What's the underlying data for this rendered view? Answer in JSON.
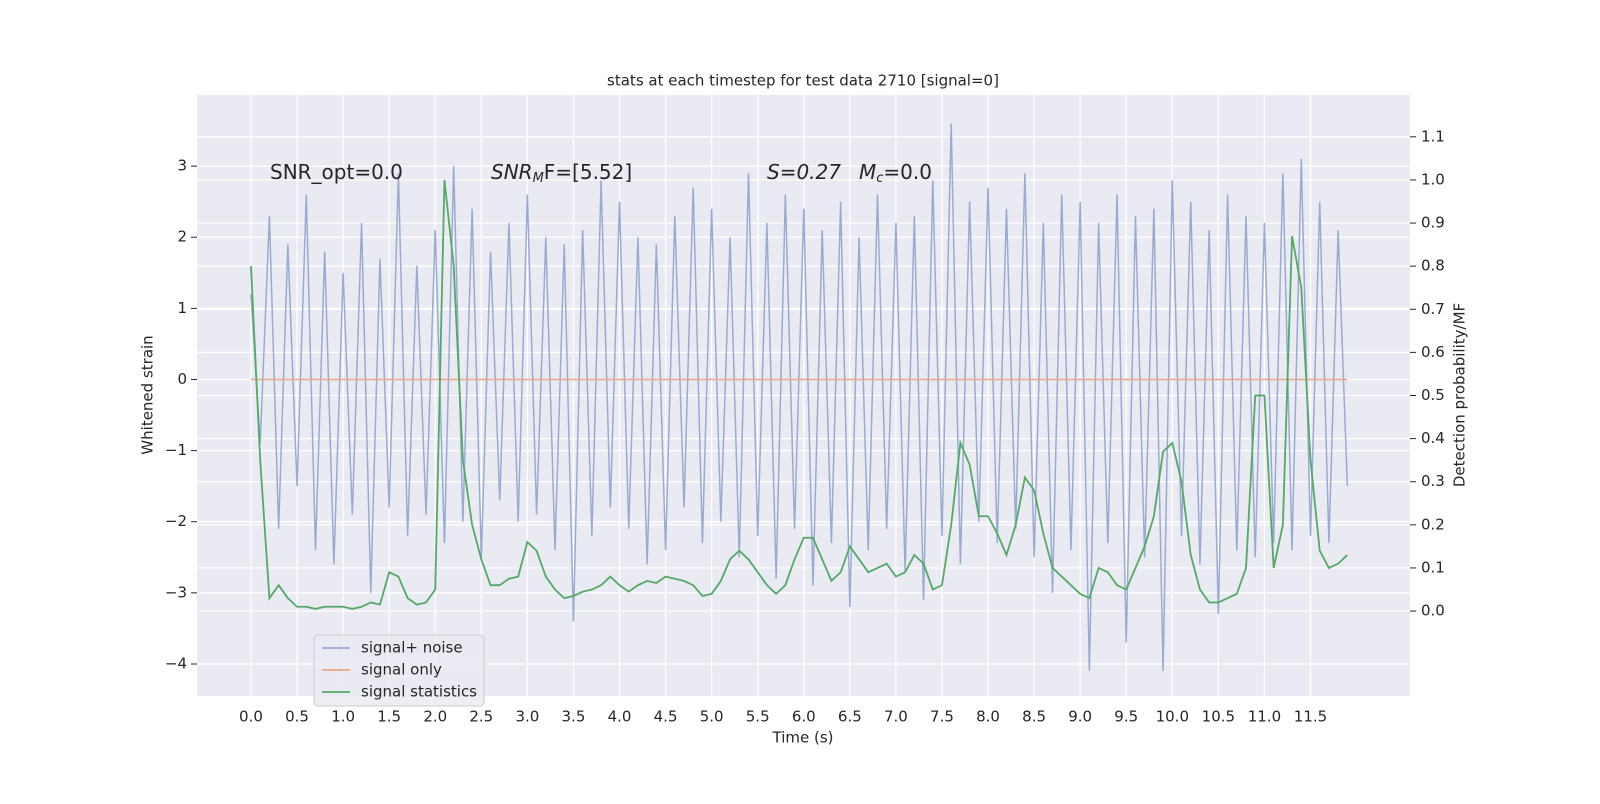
{
  "chart_data": {
    "type": "line",
    "title": "stats at each timestep for test data 2710 [signal=0]",
    "xlabel": "Time (s)",
    "ylabel": "Whitened strain",
    "y2label": "Detection probability/MF",
    "annotations": [
      {
        "parts": [
          "SNR_opt=0.0"
        ]
      },
      {
        "parts": [
          "SNR",
          "M",
          "F=[5.52]"
        ]
      },
      {
        "parts": [
          "S=0.27"
        ]
      },
      {
        "parts": [
          "M",
          "c",
          "=0.0"
        ]
      }
    ],
    "x": [
      0.0,
      0.1,
      0.2,
      0.3,
      0.4,
      0.5,
      0.6,
      0.7,
      0.8,
      0.9,
      1.0,
      1.1,
      1.2,
      1.3,
      1.4,
      1.5,
      1.6,
      1.7,
      1.8,
      1.9,
      2.0,
      2.1,
      2.2,
      2.3,
      2.4,
      2.5,
      2.6,
      2.7,
      2.8,
      2.9,
      3.0,
      3.1,
      3.2,
      3.3,
      3.4,
      3.5,
      3.6,
      3.7,
      3.8,
      3.9,
      4.0,
      4.1,
      4.2,
      4.3,
      4.4,
      4.5,
      4.6,
      4.7,
      4.8,
      4.9,
      5.0,
      5.1,
      5.2,
      5.3,
      5.4,
      5.5,
      5.6,
      5.7,
      5.8,
      5.9,
      6.0,
      6.1,
      6.2,
      6.3,
      6.4,
      6.5,
      6.6,
      6.7,
      6.8,
      6.9,
      7.0,
      7.1,
      7.2,
      7.3,
      7.4,
      7.5,
      7.6,
      7.7,
      7.8,
      7.9,
      8.0,
      8.1,
      8.2,
      8.3,
      8.4,
      8.5,
      8.6,
      8.7,
      8.8,
      8.9,
      9.0,
      9.1,
      9.2,
      9.3,
      9.4,
      9.5,
      9.6,
      9.7,
      9.8,
      9.9,
      10.0,
      10.1,
      10.2,
      10.3,
      10.4,
      10.5,
      10.6,
      10.7,
      10.8,
      10.9,
      11.0,
      11.1,
      11.2,
      11.3,
      11.4,
      11.5,
      11.6,
      11.7,
      11.8,
      11.9
    ],
    "series": [
      {
        "name": "signal+ noise",
        "color": "#9aabd2",
        "values": [
          1.2,
          -0.9,
          2.3,
          -2.1,
          1.9,
          -1.5,
          2.6,
          -2.4,
          1.8,
          -2.6,
          1.5,
          -1.9,
          2.2,
          -3.0,
          1.7,
          -1.8,
          2.9,
          -2.2,
          1.6,
          -1.9,
          2.1,
          -2.3,
          3.0,
          -2.0,
          2.4,
          -2.5,
          1.8,
          -1.7,
          2.2,
          -2.0,
          2.6,
          -1.9,
          2.0,
          -2.4,
          1.9,
          -3.4,
          2.1,
          -2.2,
          2.8,
          -1.8,
          2.5,
          -2.1,
          2.0,
          -2.6,
          1.9,
          -2.4,
          2.3,
          -1.8,
          2.7,
          -2.3,
          2.4,
          -2.0,
          2.0,
          -2.5,
          2.9,
          -2.2,
          2.2,
          -2.8,
          2.6,
          -2.1,
          2.4,
          -2.9,
          2.1,
          -2.3,
          2.5,
          -3.2,
          2.0,
          -2.4,
          2.6,
          -2.1,
          2.2,
          -2.7,
          2.3,
          -3.1,
          2.8,
          -2.2,
          3.6,
          -2.6,
          2.5,
          -2.0,
          2.7,
          -2.3,
          2.4,
          -2.1,
          2.9,
          -2.5,
          2.2,
          -3.0,
          2.6,
          -2.4,
          2.5,
          -4.1,
          2.2,
          -2.3,
          2.6,
          -3.7,
          2.3,
          -2.5,
          2.4,
          -4.1,
          2.8,
          -2.2,
          2.5,
          -2.6,
          2.1,
          -3.3,
          2.6,
          -2.4,
          2.3,
          -2.5,
          2.2,
          -2.3,
          2.9,
          -2.4,
          3.1,
          -2.2,
          2.5,
          -2.3,
          2.1,
          -1.5
        ]
      },
      {
        "name": "signal only",
        "color": "#e8a98a",
        "values": [
          0,
          0,
          0,
          0,
          0,
          0,
          0,
          0,
          0,
          0,
          0,
          0,
          0,
          0,
          0,
          0,
          0,
          0,
          0,
          0,
          0,
          0,
          0,
          0,
          0,
          0,
          0,
          0,
          0,
          0,
          0,
          0,
          0,
          0,
          0,
          0,
          0,
          0,
          0,
          0,
          0,
          0,
          0,
          0,
          0,
          0,
          0,
          0,
          0,
          0,
          0,
          0,
          0,
          0,
          0,
          0,
          0,
          0,
          0,
          0,
          0,
          0,
          0,
          0,
          0,
          0,
          0,
          0,
          0,
          0,
          0,
          0,
          0,
          0,
          0,
          0,
          0,
          0,
          0,
          0,
          0,
          0,
          0,
          0,
          0,
          0,
          0,
          0,
          0,
          0,
          0,
          0,
          0,
          0,
          0,
          0,
          0,
          0,
          0,
          0,
          0,
          0,
          0,
          0,
          0,
          0,
          0,
          0,
          0,
          0,
          0,
          0,
          0,
          0,
          0,
          0,
          0,
          0,
          0,
          0
        ]
      },
      {
        "name": "signal statistics",
        "color": "#55a868",
        "axis": "y2",
        "values": [
          0.8,
          0.35,
          0.03,
          0.06,
          0.03,
          0.01,
          0.01,
          0.005,
          0.01,
          0.01,
          0.01,
          0.005,
          0.01,
          0.02,
          0.015,
          0.09,
          0.08,
          0.03,
          0.015,
          0.02,
          0.05,
          1.0,
          0.8,
          0.35,
          0.2,
          0.12,
          0.06,
          0.06,
          0.075,
          0.08,
          0.16,
          0.14,
          0.08,
          0.05,
          0.03,
          0.035,
          0.045,
          0.05,
          0.06,
          0.08,
          0.06,
          0.045,
          0.06,
          0.07,
          0.065,
          0.08,
          0.075,
          0.07,
          0.06,
          0.035,
          0.04,
          0.07,
          0.12,
          0.14,
          0.12,
          0.09,
          0.06,
          0.04,
          0.06,
          0.12,
          0.17,
          0.17,
          0.12,
          0.07,
          0.09,
          0.15,
          0.12,
          0.09,
          0.1,
          0.11,
          0.08,
          0.09,
          0.13,
          0.11,
          0.05,
          0.06,
          0.2,
          0.39,
          0.34,
          0.22,
          0.22,
          0.18,
          0.13,
          0.2,
          0.31,
          0.28,
          0.18,
          0.1,
          0.08,
          0.06,
          0.04,
          0.03,
          0.1,
          0.09,
          0.06,
          0.05,
          0.1,
          0.15,
          0.22,
          0.37,
          0.39,
          0.3,
          0.13,
          0.05,
          0.02,
          0.02,
          0.03,
          0.04,
          0.1,
          0.5,
          0.5,
          0.1,
          0.2,
          0.87,
          0.75,
          0.35,
          0.14,
          0.1,
          0.11,
          0.13
        ]
      }
    ],
    "xlim": [
      -0.586,
      12.58
    ],
    "xticks": [
      {
        "value": 0,
        "label": "0.0"
      },
      0.5,
      {
        "value": 1,
        "label": "1.0"
      },
      1.5,
      {
        "value": 2,
        "label": "2.0"
      },
      2.5,
      {
        "value": 3,
        "label": "3.0"
      },
      3.5,
      {
        "value": 4,
        "label": "4.0"
      },
      4.5,
      {
        "value": 5,
        "label": "5.0"
      },
      5.5,
      {
        "value": 6,
        "label": "6.0"
      },
      6.5,
      {
        "value": 7,
        "label": "7.0"
      },
      7.5,
      {
        "value": 8,
        "label": "8.0"
      },
      8.5,
      {
        "value": 9,
        "label": "9.0"
      },
      9.5,
      {
        "value": 10,
        "label": "10.0"
      },
      10.5,
      {
        "value": 11,
        "label": "11.0"
      },
      11.5
    ],
    "ylim": [
      -4.45,
      4.0
    ],
    "yticks": [
      {
        "value": -4,
        "label": "−4"
      },
      {
        "value": -3,
        "label": "−3"
      },
      {
        "value": -2,
        "label": "−2"
      },
      {
        "value": -1,
        "label": "−1"
      },
      0,
      1,
      2,
      3
    ],
    "y2lim": [
      -0.197,
      1.197
    ],
    "y2ticks": [
      {
        "value": 0,
        "label": "0.0"
      },
      0.1,
      0.2,
      0.3,
      0.4,
      0.5,
      0.6,
      0.7,
      0.8,
      0.9,
      {
        "value": 1,
        "label": "1.0"
      },
      1.1
    ],
    "grid": true,
    "legend": "lower left"
  }
}
